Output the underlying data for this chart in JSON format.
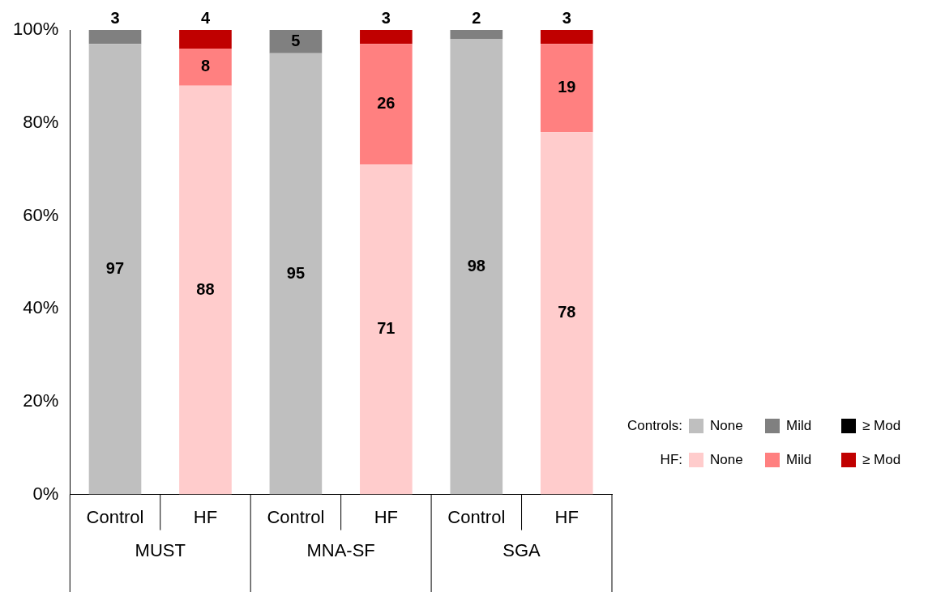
{
  "chart_data": {
    "type": "bar",
    "stacked": true,
    "categories": [
      "Control",
      "HF",
      "Control",
      "HF",
      "Control",
      "HF"
    ],
    "series": [
      {
        "name": "None",
        "color": "#bfbfbf",
        "values": [
          97,
          null,
          95,
          null,
          98,
          null
        ]
      },
      {
        "name": "Mild",
        "color": "#808080",
        "values": [
          3,
          null,
          5,
          null,
          2,
          null
        ]
      },
      {
        "name": "≥ Mod",
        "color": "#000000",
        "values": [
          null,
          null,
          null,
          null,
          null,
          null
        ]
      },
      {
        "name": "None",
        "color": "#ffcccc",
        "values": [
          null,
          88,
          null,
          71,
          null,
          78
        ]
      },
      {
        "name": "Mild",
        "color": "#ff8080",
        "values": [
          null,
          8,
          null,
          26,
          null,
          19
        ]
      },
      {
        "name": "≥ Mod",
        "color": "#c00000",
        "values": [
          null,
          4,
          null,
          3,
          null,
          3
        ]
      }
    ],
    "ylim": [
      0,
      100
    ],
    "yticks": [
      {
        "value": 0,
        "label": "0%"
      },
      {
        "value": 20,
        "label": "20%"
      },
      {
        "value": 40,
        "label": "40%"
      },
      {
        "value": 60,
        "label": "60%"
      },
      {
        "value": 80,
        "label": "80%"
      },
      {
        "value": 100,
        "label": "100%"
      }
    ],
    "grid": false,
    "data_labels": true,
    "legend": "right",
    "annotations": [
      "Controls:",
      "HF:",
      "MUST",
      "MNA-SF",
      "SGA"
    ]
  }
}
